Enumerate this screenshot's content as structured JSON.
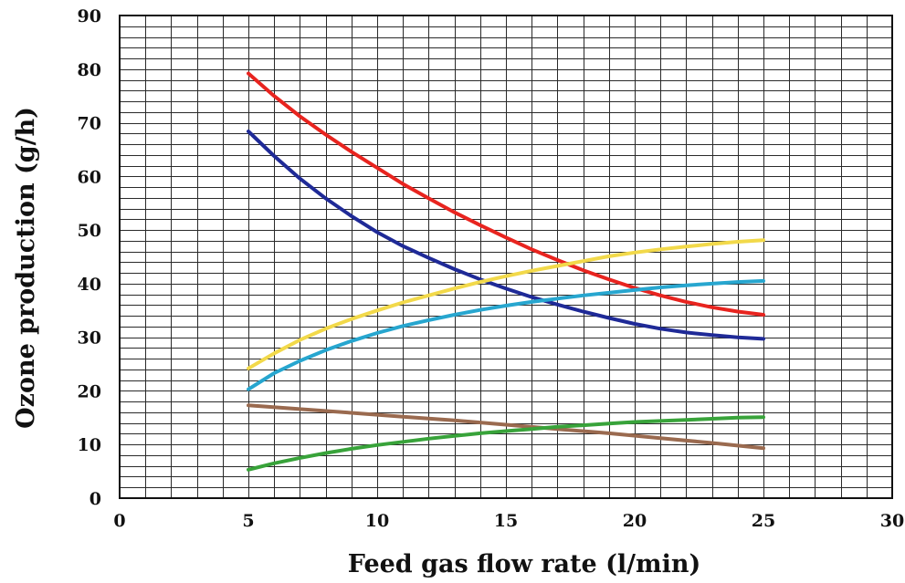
{
  "chart_data": {
    "type": "line",
    "title": "",
    "xlabel": "Feed gas flow rate (l/min)",
    "ylabel": "Ozone production (g/h)",
    "xlim": [
      0,
      30
    ],
    "ylim": [
      0,
      90
    ],
    "x_ticks": [
      "0",
      "5",
      "10",
      "15",
      "20",
      "25",
      "30"
    ],
    "y_ticks": [
      "0",
      "10",
      "20",
      "30",
      "40",
      "50",
      "60",
      "70",
      "80",
      "90"
    ],
    "grid": true,
    "legend": "none",
    "series": [
      {
        "color": "#e8241f",
        "x": [
          5,
          6,
          7,
          8,
          9,
          10,
          11,
          12,
          13,
          14,
          15,
          16,
          17,
          18,
          19,
          20,
          21,
          22,
          23,
          24,
          25
        ],
        "values": [
          79.2,
          75.0,
          71.2,
          67.8,
          64.6,
          61.6,
          58.6,
          55.9,
          53.3,
          50.9,
          48.6,
          46.4,
          44.4,
          42.5,
          40.8,
          39.2,
          37.8,
          36.6,
          35.6,
          34.8,
          34.2
        ]
      },
      {
        "color": "#1f2a97",
        "x": [
          5,
          6,
          7,
          8,
          9,
          10,
          11,
          12,
          13,
          14,
          15,
          16,
          17,
          18,
          19,
          20,
          21,
          22,
          23,
          24,
          25
        ],
        "values": [
          68.4,
          63.8,
          59.6,
          55.9,
          52.6,
          49.6,
          47.0,
          44.8,
          42.7,
          40.8,
          39.1,
          37.5,
          36.1,
          34.8,
          33.6,
          32.5,
          31.6,
          30.9,
          30.4,
          30.0,
          29.7
        ]
      },
      {
        "color": "#f2d94a",
        "x": [
          5,
          6,
          7,
          8,
          9,
          10,
          11,
          12,
          13,
          14,
          15,
          16,
          17,
          18,
          19,
          20,
          21,
          22,
          23,
          24,
          25
        ],
        "values": [
          24.2,
          27.0,
          29.5,
          31.6,
          33.4,
          35.0,
          36.5,
          37.8,
          39.1,
          40.3,
          41.4,
          42.4,
          43.3,
          44.2,
          45.1,
          45.8,
          46.4,
          46.9,
          47.4,
          47.8,
          48.1
        ]
      },
      {
        "color": "#27a6cf",
        "x": [
          5,
          6,
          7,
          8,
          9,
          10,
          11,
          12,
          13,
          14,
          15,
          16,
          17,
          18,
          19,
          20,
          21,
          22,
          23,
          24,
          25
        ],
        "values": [
          20.3,
          23.3,
          25.6,
          27.6,
          29.3,
          30.8,
          32.1,
          33.2,
          34.2,
          35.1,
          35.9,
          36.6,
          37.2,
          37.8,
          38.3,
          38.8,
          39.3,
          39.7,
          40.0,
          40.3,
          40.5
        ]
      },
      {
        "color": "#9a6a4f",
        "x": [
          5,
          7,
          9,
          11,
          13,
          15,
          17,
          19,
          21,
          23,
          25
        ],
        "values": [
          17.3,
          16.6,
          15.9,
          15.2,
          14.5,
          13.7,
          12.9,
          12.1,
          11.2,
          10.3,
          9.3
        ]
      },
      {
        "color": "#38a33a",
        "x": [
          5,
          6,
          7,
          8,
          9,
          10,
          11,
          12,
          13,
          14,
          15,
          16,
          17,
          18,
          19,
          20,
          21,
          22,
          23,
          24,
          25
        ],
        "values": [
          5.3,
          6.5,
          7.5,
          8.4,
          9.2,
          9.9,
          10.5,
          11.1,
          11.6,
          12.1,
          12.5,
          12.9,
          13.3,
          13.6,
          13.9,
          14.2,
          14.4,
          14.6,
          14.8,
          15.0,
          15.1
        ]
      }
    ]
  }
}
